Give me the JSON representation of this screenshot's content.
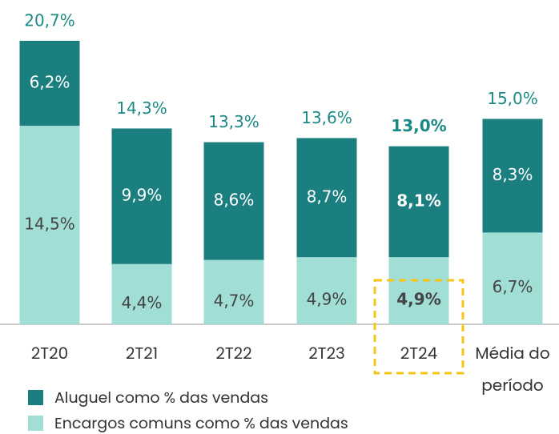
{
  "chart_data": {
    "type": "stacked_bar",
    "categories": [
      "2T20",
      "2T21",
      "2T22",
      "2T23",
      "2T24",
      "Média do período"
    ],
    "series": [
      {
        "name": "Encargos comuns como % das vendas",
        "color": "#a0ded6",
        "values": [
          14.5,
          4.4,
          4.7,
          4.9,
          4.9,
          6.7
        ],
        "value_labels": [
          "14,5%",
          "4,4%",
          "4,7%",
          "4,9%",
          "4,9%",
          "6,7%"
        ]
      },
      {
        "name": "Aluguel como % das vendas",
        "color": "#1b7f80",
        "values": [
          6.2,
          9.9,
          8.6,
          8.7,
          8.1,
          8.3
        ],
        "value_labels": [
          "6,2%",
          "9,9%",
          "8,6%",
          "8,7%",
          "8,1%",
          "8,3%"
        ]
      }
    ],
    "totals": [
      20.7,
      14.3,
      13.3,
      13.6,
      13.0,
      15.0
    ],
    "total_labels": [
      "20,7%",
      "14,3%",
      "13,3%",
      "13,6%",
      "13,0%",
      "15,0%"
    ],
    "highlight_index": 4,
    "highlight_color": "#f5c518"
  }
}
